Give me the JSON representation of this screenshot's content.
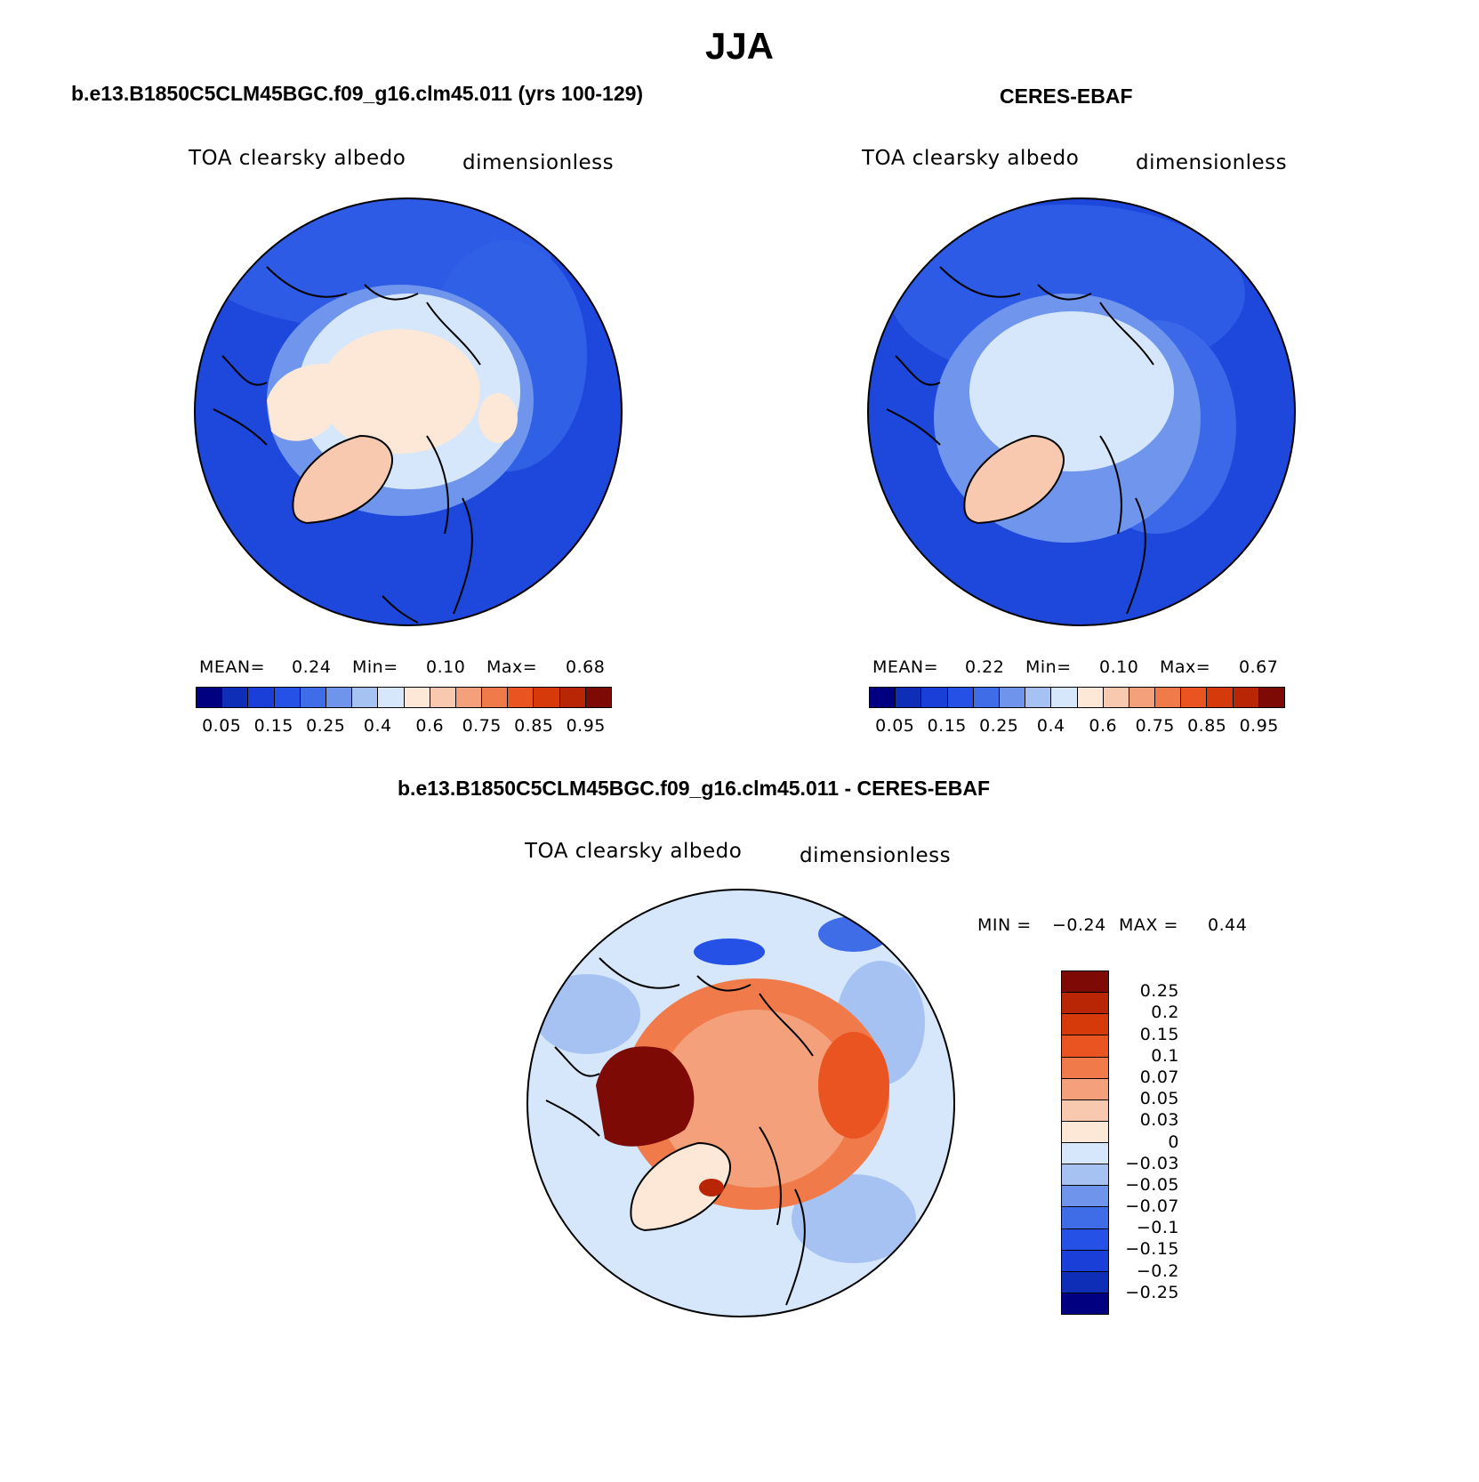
{
  "figure": {
    "title": "JJA",
    "colors": {
      "abs_scale": [
        "#000080",
        "#0f2eb8",
        "#1a3fd9",
        "#2551e6",
        "#3f6de8",
        "#6f94ec",
        "#a6c2f3",
        "#d6e7fb",
        "#fde8d8",
        "#f8c9ae",
        "#f4a07a",
        "#f07a4a",
        "#ea5420",
        "#d63a0a",
        "#b82605",
        "#7d0a05"
      ],
      "diff_scale": [
        "#000080",
        "#0f2eb8",
        "#1a3fd9",
        "#2551e6",
        "#3f6de8",
        "#6f94ec",
        "#a6c2f3",
        "#d6e7fb",
        "#fde8d8",
        "#f8c9ae",
        "#f4a07a",
        "#f07a4a",
        "#ea5420",
        "#d63a0a",
        "#b82605",
        "#7d0a05"
      ],
      "ocean_deep": "#1a47dc",
      "coastline": "#000000"
    }
  },
  "panels": {
    "model": {
      "case_title": "b.e13.B1850C5CLM45BGC.f09_g16.clm45.011 (yrs 100-129)",
      "variable": "TOA clearsky albedo",
      "units": "dimensionless",
      "stats_label_mean": "MEAN=",
      "mean": "0.24",
      "stats_label_min": "Min=",
      "min": "0.10",
      "stats_label_max": "Max=",
      "max": "0.68",
      "colorbar_ticks": [
        "0.05",
        "0.15",
        "0.25",
        "0.4",
        "0.6",
        "0.75",
        "0.85",
        "0.95"
      ]
    },
    "obs": {
      "case_title": "CERES-EBAF",
      "variable": "TOA clearsky albedo",
      "units": "dimensionless",
      "stats_label_mean": "MEAN=",
      "mean": "0.22",
      "stats_label_min": "Min=",
      "min": "0.10",
      "stats_label_max": "Max=",
      "max": "0.67",
      "colorbar_ticks": [
        "0.05",
        "0.15",
        "0.25",
        "0.4",
        "0.6",
        "0.75",
        "0.85",
        "0.95"
      ]
    },
    "diff": {
      "case_title": "b.e13.B1850C5CLM45BGC.f09_g16.clm45.011 - CERES-EBAF",
      "variable": "TOA clearsky albedo",
      "units": "dimensionless",
      "min_label": "MIN =",
      "min": "−0.24",
      "max_label": "MAX =",
      "max": "0.44",
      "colorbar_ticks": [
        "0.25",
        "0.2",
        "0.15",
        "0.1",
        "0.07",
        "0.05",
        "0.03",
        "0",
        "−0.03",
        "−0.05",
        "−0.07",
        "−0.1",
        "−0.15",
        "−0.2",
        "−0.25"
      ]
    }
  }
}
